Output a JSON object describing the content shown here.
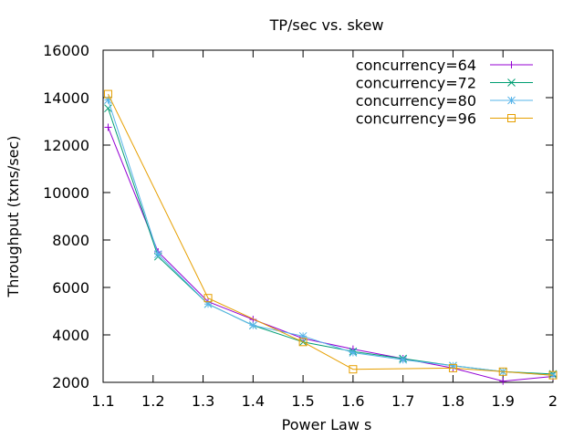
{
  "chart_data": {
    "type": "line",
    "title": "TP/sec vs. skew",
    "xlabel": "Power Law s",
    "ylabel": "Throughput (txns/sec)",
    "xlim": [
      1.1,
      2.0
    ],
    "ylim": [
      2000,
      16000
    ],
    "xticks": [
      "1.1",
      "1.2",
      "1.3",
      "1.4",
      "1.5",
      "1.6",
      "1.7",
      "1.8",
      "1.9",
      "2"
    ],
    "yticks": [
      "2000",
      "4000",
      "6000",
      "8000",
      "10000",
      "12000",
      "14000",
      "16000"
    ],
    "grid": false,
    "legend_position": "top-right",
    "x": [
      1.11,
      1.21,
      1.31,
      1.4,
      1.5,
      1.6,
      1.7,
      1.8,
      1.9,
      2.0
    ],
    "series": [
      {
        "name": "concurrency=64",
        "color": "#9400d3",
        "marker": "plus",
        "values": [
          12750,
          7500,
          5400,
          4650,
          3850,
          3400,
          3000,
          2600,
          2050,
          2250
        ]
      },
      {
        "name": "concurrency=72",
        "color": "#009e73",
        "marker": "cross",
        "values": [
          13550,
          7300,
          5300,
          4400,
          3700,
          3300,
          3000,
          2700,
          2450,
          2350
        ]
      },
      {
        "name": "concurrency=80",
        "color": "#56b4e9",
        "marker": "star",
        "values": [
          13900,
          7400,
          5300,
          4400,
          3950,
          3250,
          2950,
          2700,
          2450,
          2300
        ]
      },
      {
        "name": "concurrency=96",
        "color": "#e69f00",
        "marker": "square",
        "values": [
          14150,
          null,
          5550,
          null,
          3700,
          2550,
          null,
          2600,
          2450,
          2300
        ]
      }
    ]
  }
}
